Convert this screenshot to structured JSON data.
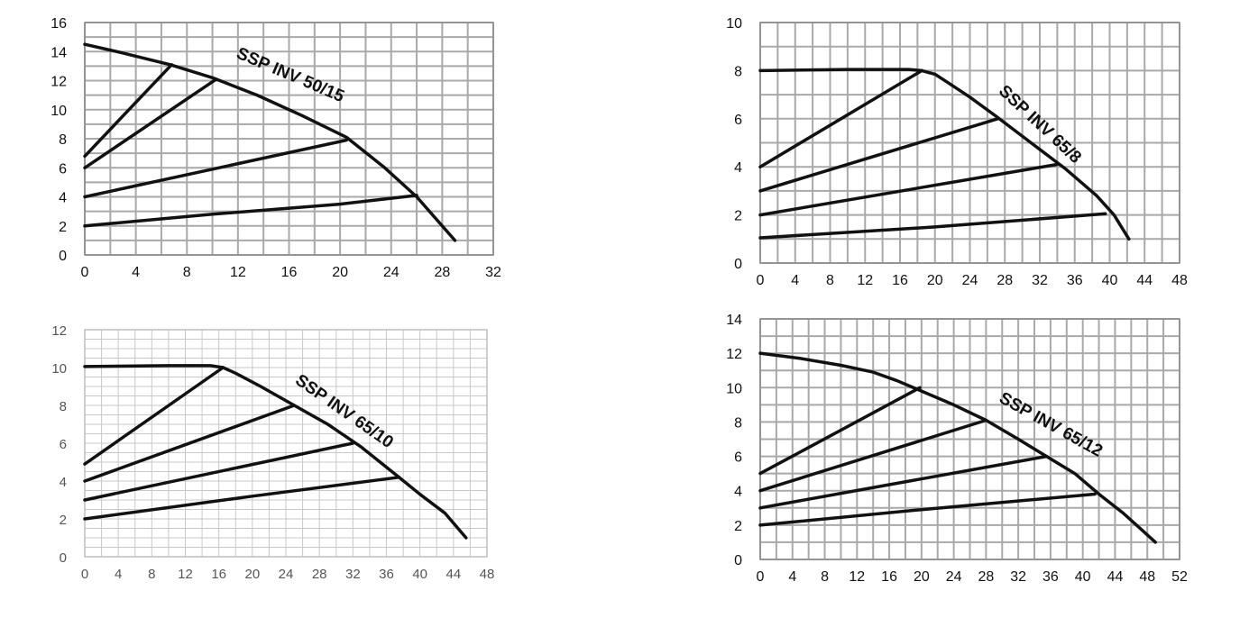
{
  "chart_data": [
    {
      "type": "line",
      "title": "",
      "label": "SSP INV 50/15",
      "xlabel": "",
      "ylabel": "",
      "xlim": [
        0,
        32
      ],
      "ylim": [
        0,
        16
      ],
      "xticks": [
        0,
        4,
        8,
        12,
        16,
        20,
        24,
        28,
        32
      ],
      "yticks": [
        0,
        2,
        4,
        6,
        8,
        10,
        12,
        14,
        16
      ],
      "grid": true,
      "style": "normal",
      "label_anchor": [
        11.8,
        13.6
      ],
      "label_angle": 23,
      "series": [
        {
          "x": [
            0,
            3,
            6.7,
            10,
            13.5,
            17,
            20.5,
            23.5,
            26,
            29
          ],
          "y": [
            14.5,
            13.9,
            13.1,
            12.2,
            11.0,
            9.6,
            8.1,
            6.0,
            4.0,
            1.0
          ]
        },
        {
          "x": [
            0,
            6.8
          ],
          "y": [
            6.8,
            13.1
          ]
        },
        {
          "x": [
            0,
            10.3
          ],
          "y": [
            6.0,
            12.1
          ]
        },
        {
          "x": [
            0,
            20.5
          ],
          "y": [
            4.0,
            7.9
          ]
        },
        {
          "x": [
            0,
            10,
            20,
            26
          ],
          "y": [
            2.0,
            2.8,
            3.5,
            4.1
          ]
        }
      ]
    },
    {
      "type": "line",
      "title": "",
      "label": "SSP INV 65/8",
      "xlabel": "",
      "ylabel": "",
      "xlim": [
        0,
        48
      ],
      "ylim": [
        0,
        10
      ],
      "xticks": [
        0,
        4,
        8,
        12,
        16,
        20,
        24,
        28,
        32,
        36,
        40,
        44,
        48
      ],
      "yticks": [
        0,
        2,
        4,
        6,
        8,
        10
      ],
      "grid": true,
      "style": "normal",
      "label_anchor": [
        27.2,
        7.1
      ],
      "label_angle": 43,
      "series": [
        {
          "x": [
            0,
            10,
            17,
            18.5,
            20,
            21.5,
            24,
            27,
            31,
            35,
            38.5,
            40.5,
            42.2
          ],
          "y": [
            8.0,
            8.05,
            8.05,
            8.0,
            7.85,
            7.5,
            6.9,
            6.1,
            5.0,
            3.9,
            2.8,
            2.0,
            1.0
          ]
        },
        {
          "x": [
            0,
            18.5
          ],
          "y": [
            4.0,
            8.0
          ]
        },
        {
          "x": [
            0,
            27.2
          ],
          "y": [
            3.0,
            6.0
          ]
        },
        {
          "x": [
            0,
            34
          ],
          "y": [
            2.0,
            4.1
          ]
        },
        {
          "x": [
            0,
            20,
            39.5
          ],
          "y": [
            1.05,
            1.5,
            2.05
          ]
        }
      ]
    },
    {
      "type": "line",
      "title": "",
      "label": "SSP INV 65/10",
      "xlabel": "",
      "ylabel": "",
      "xlim": [
        0,
        48
      ],
      "ylim": [
        0,
        12
      ],
      "xticks": [
        0,
        4,
        8,
        12,
        16,
        20,
        24,
        28,
        32,
        36,
        40,
        44,
        48
      ],
      "yticks": [
        0,
        2,
        4,
        6,
        8,
        10,
        12
      ],
      "grid": true,
      "style": "faded",
      "label_anchor": [
        25,
        9.2
      ],
      "label_angle": 35,
      "series": [
        {
          "x": [
            0,
            10,
            15,
            16.5,
            18,
            21,
            25,
            29,
            33,
            37.5,
            40,
            43,
            45.5
          ],
          "y": [
            10.05,
            10.1,
            10.1,
            10.0,
            9.7,
            9.0,
            8.0,
            7.0,
            5.8,
            4.2,
            3.3,
            2.3,
            1.0
          ]
        },
        {
          "x": [
            0,
            16.5
          ],
          "y": [
            4.9,
            10.0
          ]
        },
        {
          "x": [
            0,
            25
          ],
          "y": [
            4.0,
            8.0
          ]
        },
        {
          "x": [
            0,
            32
          ],
          "y": [
            3.0,
            6.0
          ]
        },
        {
          "x": [
            0,
            20,
            37.5
          ],
          "y": [
            2.0,
            3.2,
            4.2
          ]
        }
      ]
    },
    {
      "type": "line",
      "title": "",
      "label": "SSP INV 65/12",
      "xlabel": "",
      "ylabel": "",
      "xlim": [
        0,
        52
      ],
      "ylim": [
        0,
        14
      ],
      "xticks": [
        0,
        4,
        8,
        12,
        16,
        20,
        24,
        28,
        32,
        36,
        40,
        44,
        48,
        52
      ],
      "yticks": [
        0,
        2,
        4,
        6,
        8,
        10,
        12,
        14
      ],
      "grid": true,
      "style": "normal",
      "label_anchor": [
        29.5,
        9.2
      ],
      "label_angle": 29,
      "series": [
        {
          "x": [
            0,
            5,
            10,
            14,
            17,
            20,
            24,
            28,
            32,
            35.5,
            39,
            42,
            45,
            49
          ],
          "y": [
            12.0,
            11.7,
            11.3,
            10.9,
            10.4,
            9.8,
            9.0,
            8.1,
            7.0,
            6.0,
            5.0,
            3.8,
            2.7,
            1.0
          ]
        },
        {
          "x": [
            0,
            19.8
          ],
          "y": [
            5.0,
            10.0
          ]
        },
        {
          "x": [
            0,
            28
          ],
          "y": [
            4.0,
            8.1
          ]
        },
        {
          "x": [
            0,
            35.5
          ],
          "y": [
            3.0,
            6.0
          ]
        },
        {
          "x": [
            0,
            20,
            41.5
          ],
          "y": [
            2.0,
            2.9,
            3.8
          ]
        }
      ]
    }
  ]
}
